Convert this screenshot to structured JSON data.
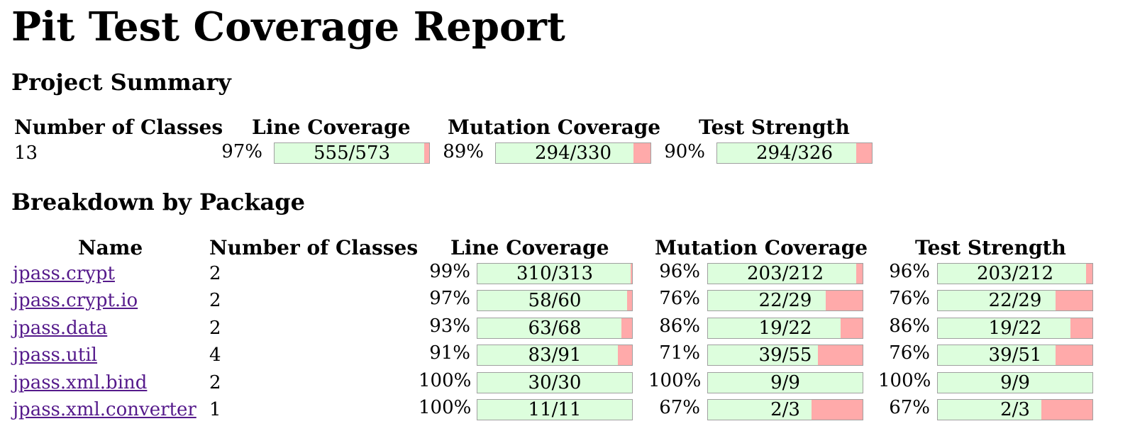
{
  "title": "Pit Test Coverage Report",
  "summary": {
    "heading": "Project Summary",
    "headers": {
      "classes": "Number of Classes",
      "line": "Line Coverage",
      "mutation": "Mutation Coverage",
      "strength": "Test Strength"
    },
    "classes": "13",
    "line": {
      "pct": "97%",
      "label": "555/573",
      "fraction": 0.97
    },
    "mutation": {
      "pct": "89%",
      "label": "294/330",
      "fraction": 0.89
    },
    "strength": {
      "pct": "90%",
      "label": "294/326",
      "fraction": 0.9
    }
  },
  "breakdown": {
    "heading": "Breakdown by Package",
    "headers": {
      "name": "Name",
      "classes": "Number of Classes",
      "line": "Line Coverage",
      "mutation": "Mutation Coverage",
      "strength": "Test Strength"
    },
    "rows": [
      {
        "name": "jpass.crypt",
        "classes": "2",
        "line": {
          "pct": "99%",
          "label": "310/313",
          "fraction": 0.99
        },
        "mutation": {
          "pct": "96%",
          "label": "203/212",
          "fraction": 0.96
        },
        "strength": {
          "pct": "96%",
          "label": "203/212",
          "fraction": 0.96
        }
      },
      {
        "name": "jpass.crypt.io",
        "classes": "2",
        "line": {
          "pct": "97%",
          "label": "58/60",
          "fraction": 0.97
        },
        "mutation": {
          "pct": "76%",
          "label": "22/29",
          "fraction": 0.76
        },
        "strength": {
          "pct": "76%",
          "label": "22/29",
          "fraction": 0.76
        }
      },
      {
        "name": "jpass.data",
        "classes": "2",
        "line": {
          "pct": "93%",
          "label": "63/68",
          "fraction": 0.93
        },
        "mutation": {
          "pct": "86%",
          "label": "19/22",
          "fraction": 0.86
        },
        "strength": {
          "pct": "86%",
          "label": "19/22",
          "fraction": 0.86
        }
      },
      {
        "name": "jpass.util",
        "classes": "4",
        "line": {
          "pct": "91%",
          "label": "83/91",
          "fraction": 0.91
        },
        "mutation": {
          "pct": "71%",
          "label": "39/55",
          "fraction": 0.71
        },
        "strength": {
          "pct": "76%",
          "label": "39/51",
          "fraction": 0.76
        }
      },
      {
        "name": "jpass.xml.bind",
        "classes": "2",
        "line": {
          "pct": "100%",
          "label": "30/30",
          "fraction": 1.0
        },
        "mutation": {
          "pct": "100%",
          "label": "9/9",
          "fraction": 1.0
        },
        "strength": {
          "pct": "100%",
          "label": "9/9",
          "fraction": 1.0
        }
      },
      {
        "name": "jpass.xml.converter",
        "classes": "1",
        "line": {
          "pct": "100%",
          "label": "11/11",
          "fraction": 1.0
        },
        "mutation": {
          "pct": "67%",
          "label": "2/3",
          "fraction": 0.67
        },
        "strength": {
          "pct": "67%",
          "label": "2/3",
          "fraction": 0.67
        }
      }
    ]
  },
  "colors": {
    "covered": "#ddfedd",
    "uncovered": "#ffaaaa",
    "link": "#551a8b"
  }
}
